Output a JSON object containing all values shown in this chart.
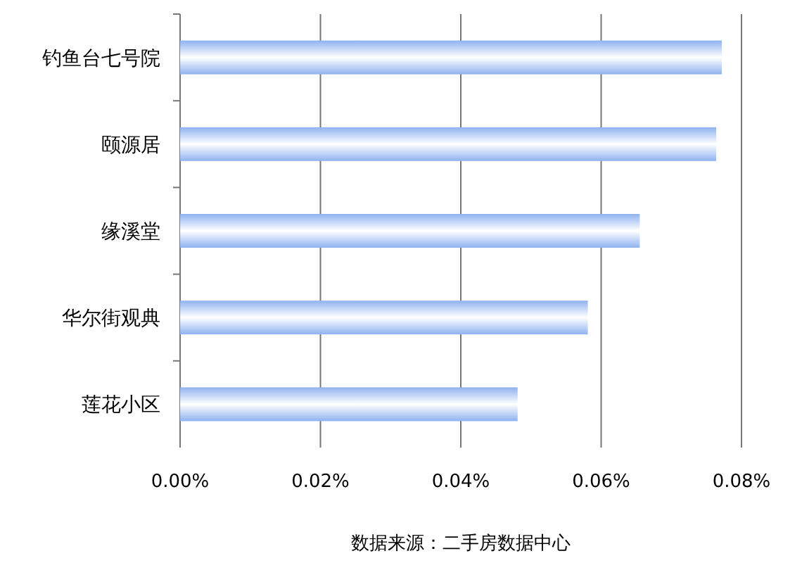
{
  "chart_data": {
    "type": "bar",
    "orientation": "horizontal",
    "categories": [
      "钓鱼台七号院",
      "颐源居",
      "缘溪堂",
      "华尔街观典",
      "莲花小区"
    ],
    "values": [
      0.0772,
      0.0764,
      0.0655,
      0.0581,
      0.0481
    ],
    "color": "#8fb2f0",
    "xlim": [
      0,
      0.08
    ],
    "xticks": [
      {
        "value": 0,
        "label": "0.00%"
      },
      {
        "value": 0.02,
        "label": "0.02%"
      },
      {
        "value": 0.04,
        "label": "0.04%"
      },
      {
        "value": 0.06,
        "label": "0.06%"
      },
      {
        "value": 0.08,
        "label": "0.08%"
      }
    ],
    "grid": "x",
    "annotations": [
      "数据来源：二手房数据中心"
    ]
  }
}
